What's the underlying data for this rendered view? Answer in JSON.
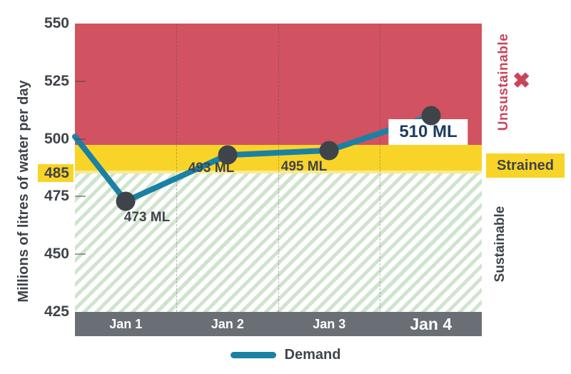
{
  "chart_data": {
    "type": "line",
    "title": "",
    "ylabel": "Millions of litres of water per day",
    "categories": [
      "Jan 1",
      "Jan 2",
      "Jan 3",
      "Jan 4"
    ],
    "series": [
      {
        "name": "Demand",
        "values": [
          473,
          493,
          495,
          510
        ]
      }
    ],
    "point_labels": [
      "473 ML",
      "493 ML",
      "495 ML",
      "510 ML"
    ],
    "entry_point_value": 501,
    "ylim": [
      425,
      550
    ],
    "yticks": [
      550,
      525,
      500,
      485,
      475,
      450,
      425
    ],
    "highlight_tick": 485,
    "grid": "vertical-dashed",
    "legend_position": "bottom-center",
    "zones": [
      {
        "label": "Unsustainable",
        "range": [
          497.5,
          550
        ]
      },
      {
        "label": "Strained",
        "range": [
          485,
          497.5
        ]
      },
      {
        "label": "Sustainable",
        "range": [
          425,
          485
        ]
      }
    ]
  },
  "yaxis": {
    "title": "Millions of litres of water per day"
  },
  "xaxis": {
    "labels": [
      "Jan 1",
      "Jan 2",
      "Jan 3",
      "Jan 4"
    ]
  },
  "points": [
    {
      "label": "473 ML"
    },
    {
      "label": "493 ML"
    },
    {
      "label": "495 ML"
    },
    {
      "label": "510 ML"
    }
  ],
  "annotations": {
    "unsustainable": "Unsustainable",
    "strained": "Strained",
    "sustainable": "Sustainable",
    "x_icon": "✖"
  },
  "legend": {
    "demand": "Demand"
  },
  "colors": {
    "red": "#d15260",
    "red-text": "#c9455a",
    "yellow": "#f9d428",
    "yellow-pale": "#f9ea93",
    "green-stripe": "#cfe4cd",
    "teal": "#1a81a4",
    "charcoal": "#3f444a",
    "gray-band": "#6a6f75",
    "navy": "#1d3c63"
  }
}
